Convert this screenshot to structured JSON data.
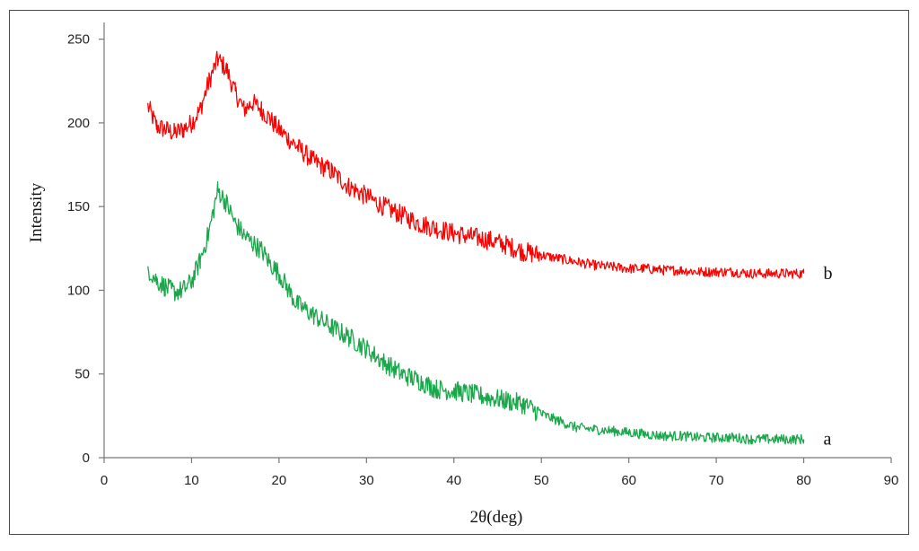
{
  "chart_data": {
    "type": "line",
    "title": "",
    "xlabel": "2θ(deg)",
    "ylabel": "Intensity",
    "xlim": [
      0,
      90
    ],
    "ylim": [
      0,
      260
    ],
    "xticks": [
      0,
      10,
      20,
      30,
      40,
      50,
      60,
      70,
      80,
      90
    ],
    "yticks": [
      0,
      50,
      100,
      150,
      200,
      250
    ],
    "grid": false,
    "legend": "none (series labeled at right end of curves)",
    "series": [
      {
        "name": "b",
        "color": "#ff0000",
        "x": [
          5,
          6,
          7,
          8,
          9,
          10,
          11,
          12,
          13,
          14,
          15,
          16,
          17,
          18,
          19,
          20,
          22,
          24,
          26,
          28,
          30,
          32,
          34,
          36,
          38,
          40,
          42,
          44,
          46,
          48,
          50,
          52,
          54,
          56,
          58,
          60,
          62,
          64,
          66,
          68,
          70,
          72,
          74,
          76,
          78,
          80
        ],
        "y": [
          210,
          198,
          196,
          194,
          196,
          200,
          208,
          225,
          238,
          232,
          218,
          208,
          212,
          208,
          202,
          196,
          186,
          177,
          171,
          162,
          156,
          150,
          145,
          140,
          137,
          134,
          132,
          130,
          127,
          123,
          121,
          119,
          117,
          115,
          114,
          113,
          113,
          112,
          112,
          111,
          111,
          111,
          110,
          110,
          110,
          110
        ]
      },
      {
        "name": "a",
        "color": "#1aa64a",
        "x": [
          5,
          6,
          7,
          8,
          9,
          10,
          11,
          12,
          13,
          14,
          15,
          16,
          17,
          18,
          19,
          20,
          22,
          24,
          26,
          28,
          30,
          32,
          34,
          36,
          38,
          40,
          42,
          44,
          46,
          48,
          50,
          52,
          54,
          56,
          58,
          60,
          62,
          64,
          66,
          68,
          70,
          72,
          74,
          76,
          78,
          80
        ],
        "y": [
          113,
          106,
          102,
          99,
          100,
          105,
          118,
          135,
          160,
          152,
          140,
          133,
          128,
          124,
          116,
          110,
          92,
          85,
          78,
          72,
          65,
          57,
          50,
          46,
          41,
          40,
          38,
          36,
          34,
          32,
          26,
          22,
          18,
          17,
          16,
          15,
          14,
          13,
          13,
          12,
          12,
          12,
          11,
          11,
          11,
          11
        ]
      }
    ]
  }
}
